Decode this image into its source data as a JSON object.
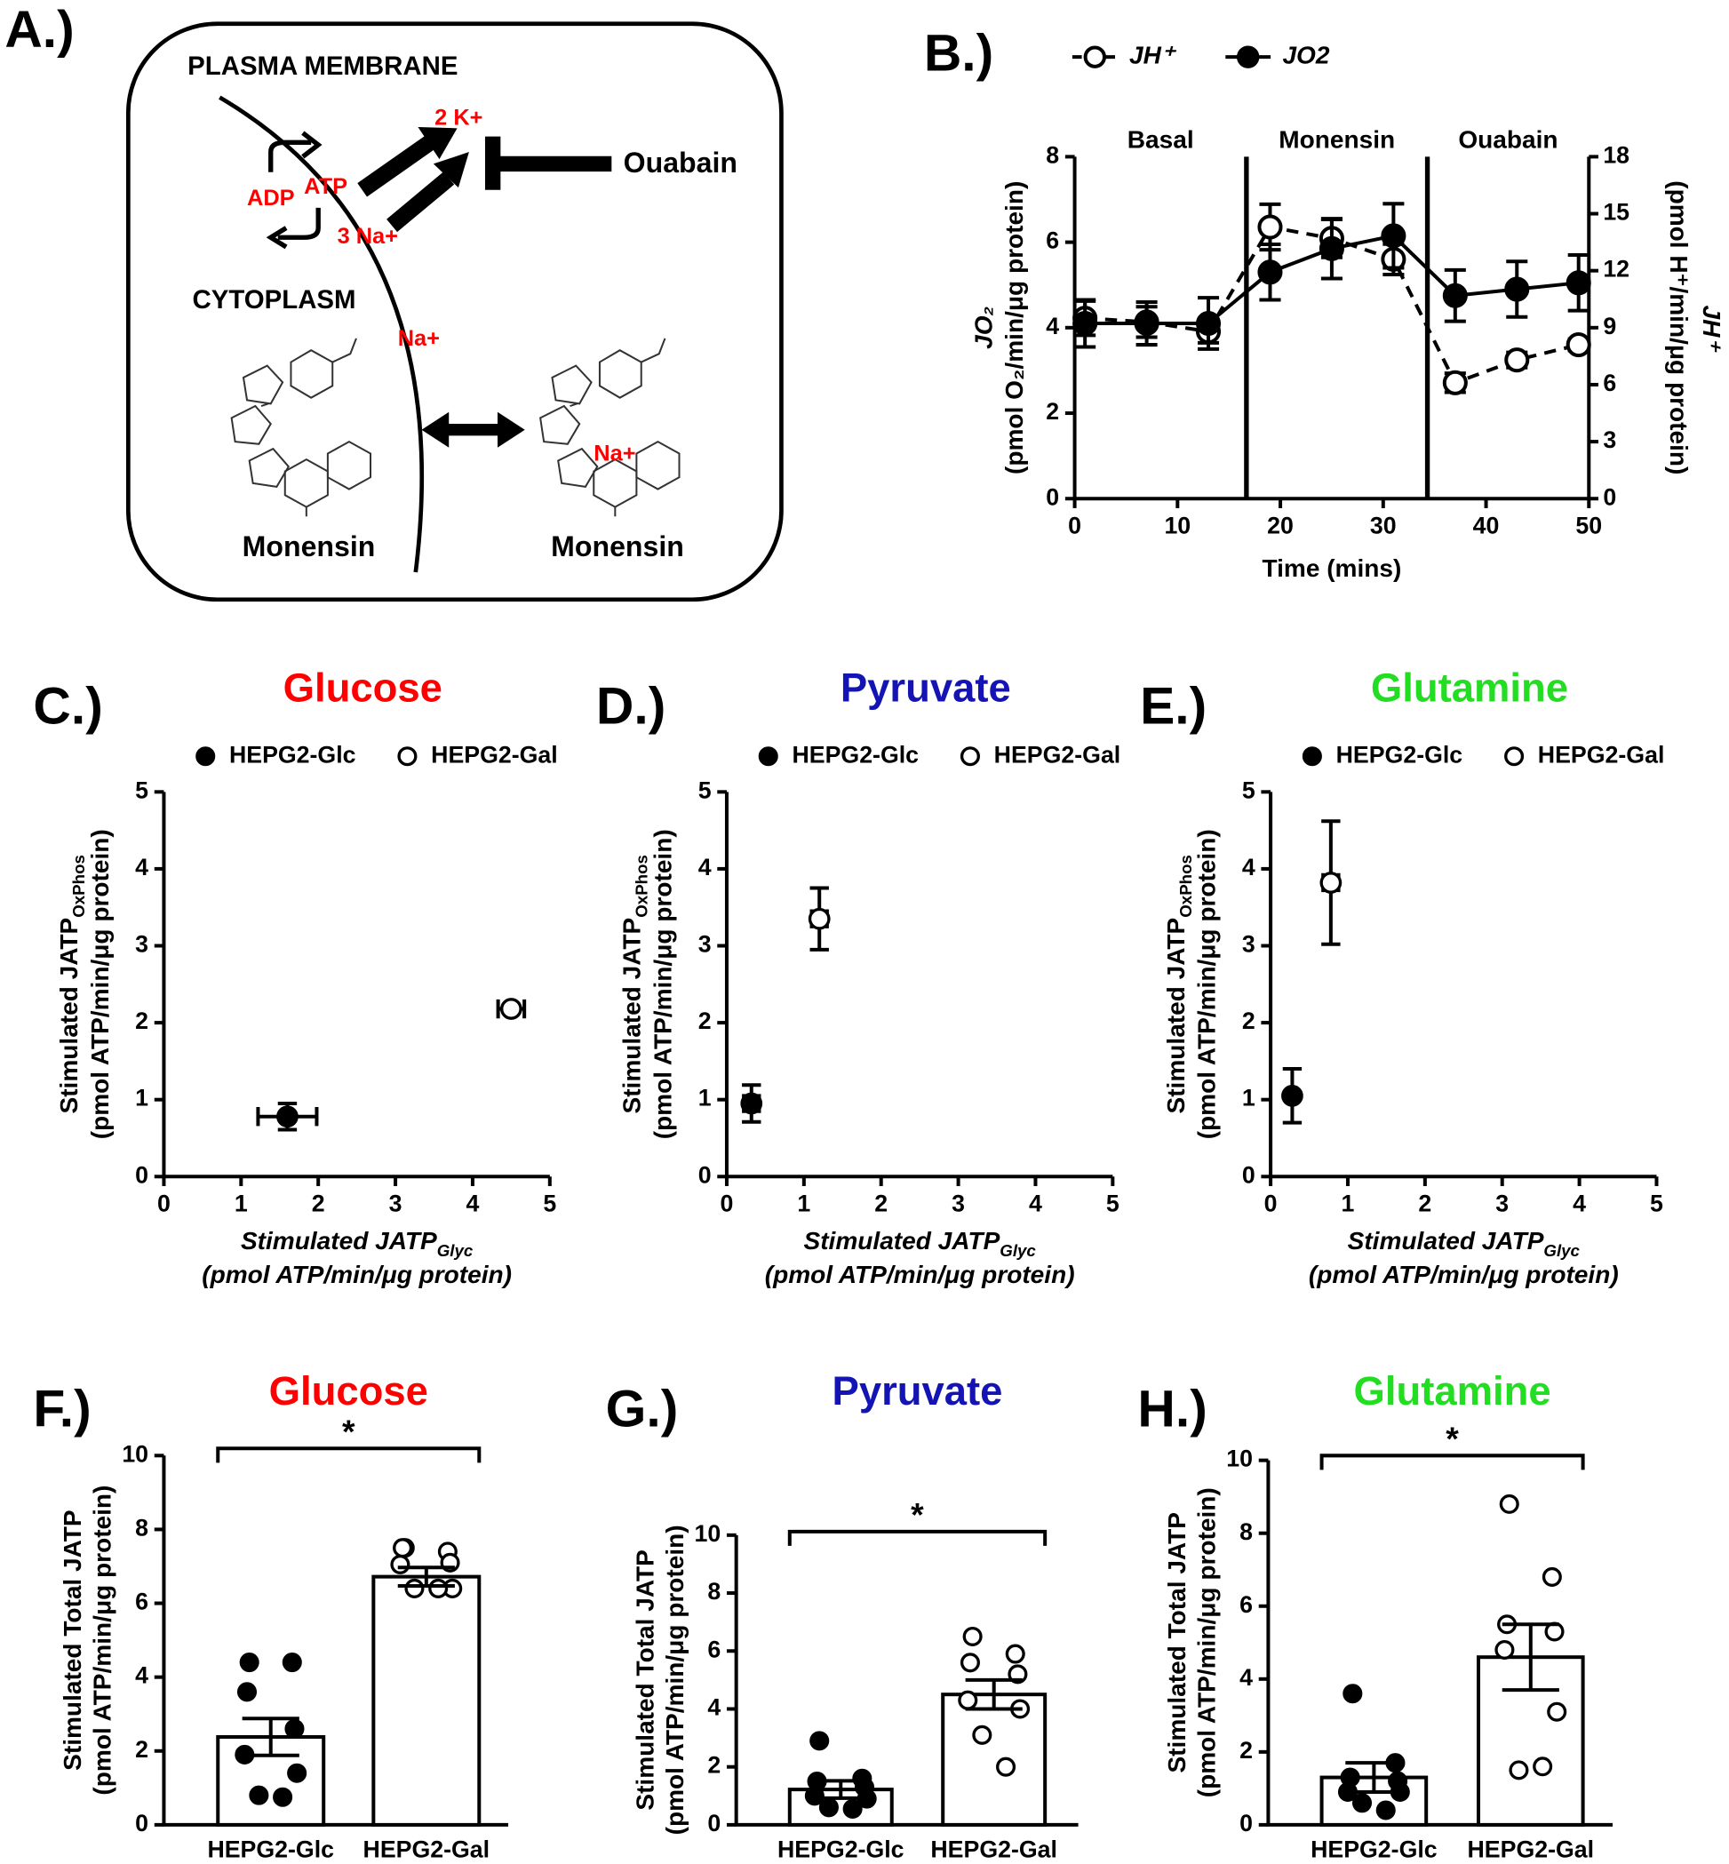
{
  "diagram": {
    "panel_label": "A.)",
    "membrane": "PLASMA MEMBRANE",
    "pump_k": "2 K+",
    "atp": "ATP",
    "adp": "ADP",
    "pump_na": "3 Na+",
    "inhibitor": "Ouabain",
    "cytoplasm": "CYTOPLASM",
    "ion_inside": "Na+",
    "ion_bound": "Na+",
    "drug_inside": "Monensin",
    "drug_outside": "Monensin"
  },
  "chart_data": [
    {
      "type": "line",
      "panel_label": "B.)",
      "x": [
        1,
        7,
        13,
        19,
        25,
        31,
        37,
        43,
        49
      ],
      "xlim": [
        0,
        50
      ],
      "xticks": [
        0,
        10,
        20,
        30,
        40,
        50
      ],
      "xlabel": "Time (mins)",
      "ylim": [
        0,
        8
      ],
      "yticks": [
        0,
        2,
        4,
        6,
        8
      ],
      "ylabel": "JO₂",
      "ylabel2": "(pmol O₂/min/μg protein)",
      "y2lim": [
        0,
        18
      ],
      "y2ticks": [
        0,
        3,
        6,
        9,
        12,
        15,
        18
      ],
      "y2label": "JH⁺",
      "y2label2": "(pmol H⁺/min/μg protein)",
      "regions": [
        {
          "label": "Basal",
          "start": 0,
          "end": 16.7
        },
        {
          "label": "Monensin",
          "start": 16.7,
          "end": 34.3
        },
        {
          "label": "Ouabain",
          "start": 34.3,
          "end": 50
        }
      ],
      "series": [
        {
          "name": "JH⁺",
          "axis": "y2",
          "color": "#000000",
          "line_style": "dashed",
          "marker_fill": "#ffffff",
          "values": [
            9.5,
            9.3,
            8.8,
            14.3,
            13.7,
            12.6,
            6.1,
            7.3,
            8.1
          ],
          "errors": [
            0.9,
            0.8,
            0.6,
            1.2,
            1.0,
            0.8,
            0.5,
            0.4,
            0.3
          ]
        },
        {
          "name": "JO2",
          "axis": "y",
          "color": "#000000",
          "line_style": "solid",
          "marker_fill": "#000000",
          "values": [
            4.1,
            4.1,
            4.1,
            5.3,
            5.85,
            6.15,
            4.75,
            4.9,
            5.05
          ],
          "errors": [
            0.55,
            0.5,
            0.6,
            0.65,
            0.7,
            0.75,
            0.6,
            0.65,
            0.65
          ]
        }
      ]
    },
    {
      "type": "scatter",
      "panel_label": "C.)",
      "title": "Glucose",
      "title_color": "#ff0000",
      "xlim": [
        0,
        5
      ],
      "xticks": [
        0,
        1,
        2,
        3,
        4,
        5
      ],
      "ylim": [
        0,
        5
      ],
      "yticks": [
        0,
        1,
        2,
        3,
        4,
        5
      ],
      "xlabel": "Stimulated JATP",
      "xlabel_sub": "Glyc",
      "xlabel2": "(pmol ATP/min/μg protein)",
      "ylabel": "Stimulated JATP",
      "ylabel_sub": "OxPhos",
      "ylabel2": "(pmol ATP/min/μg protein)",
      "series": [
        {
          "name": "HEPG2-Glc",
          "marker_fill": "#000000",
          "x": [
            1.6
          ],
          "xerr": [
            0.38
          ],
          "values": [
            0.78
          ],
          "errors": [
            0.17
          ]
        },
        {
          "name": "HEPG2-Gal",
          "marker_fill": "#ffffff",
          "x": [
            4.5
          ],
          "xerr": [
            0.17
          ],
          "values": [
            2.18
          ],
          "errors": [
            0.05
          ]
        }
      ]
    },
    {
      "type": "scatter",
      "panel_label": "D.)",
      "title": "Pyruvate",
      "title_color": "#1414b4",
      "xlim": [
        0,
        5
      ],
      "xticks": [
        0,
        1,
        2,
        3,
        4,
        5
      ],
      "ylim": [
        0,
        5
      ],
      "yticks": [
        0,
        1,
        2,
        3,
        4,
        5
      ],
      "xlabel": "Stimulated JATP",
      "xlabel_sub": "Glyc",
      "xlabel2": "(pmol ATP/min/μg protein)",
      "ylabel": "Stimulated JATP",
      "ylabel_sub": "OxPhos",
      "ylabel2": "(pmol ATP/min/μg protein)",
      "series": [
        {
          "name": "HEPG2-Glc",
          "marker_fill": "#000000",
          "x": [
            0.32
          ],
          "xerr": [
            0.1
          ],
          "values": [
            0.95
          ],
          "errors": [
            0.24
          ]
        },
        {
          "name": "HEPG2-Gal",
          "marker_fill": "#ffffff",
          "x": [
            1.2
          ],
          "xerr": [
            0.1
          ],
          "values": [
            3.35
          ],
          "errors": [
            0.4
          ]
        }
      ]
    },
    {
      "type": "scatter",
      "panel_label": "E.)",
      "title": "Glutamine",
      "title_color": "#22dd22",
      "xlim": [
        0,
        5
      ],
      "xticks": [
        0,
        1,
        2,
        3,
        4,
        5
      ],
      "ylim": [
        0,
        5
      ],
      "yticks": [
        0,
        1,
        2,
        3,
        4,
        5
      ],
      "xlabel": "Stimulated JATP",
      "xlabel_sub": "Glyc",
      "xlabel2": "(pmol ATP/min/μg protein)",
      "ylabel": "Stimulated JATP",
      "ylabel_sub": "OxPhos",
      "ylabel2": "(pmol ATP/min/μg protein)",
      "series": [
        {
          "name": "HEPG2-Glc",
          "marker_fill": "#000000",
          "x": [
            0.28
          ],
          "xerr": [
            0.05
          ],
          "values": [
            1.05
          ],
          "errors": [
            0.35
          ]
        },
        {
          "name": "HEPG2-Gal",
          "marker_fill": "#ffffff",
          "x": [
            0.78
          ],
          "xerr": [
            0.1
          ],
          "values": [
            3.82
          ],
          "errors": [
            0.8
          ]
        }
      ]
    },
    {
      "type": "bar",
      "panel_label": "F.)",
      "title": "Glucose",
      "title_color": "#ff0000",
      "annotation": "*",
      "ylim": [
        0,
        10
      ],
      "yticks": [
        0,
        2,
        4,
        6,
        8,
        10
      ],
      "ylabel": "Stimulated Total JATP",
      "ylabel2": "(pmol ATP/min/μg protein)",
      "categories": [
        "HEPG2-Glc",
        "HEPG2-Gal"
      ],
      "values": [
        2.38,
        6.72
      ],
      "errors": [
        0.5,
        0.25
      ],
      "marker_fill": [
        "#000000",
        "#ffffff"
      ],
      "points": [
        [
          4.4,
          4.4,
          3.6,
          2.6,
          1.9,
          1.4,
          0.8,
          0.75
        ],
        [
          7.5,
          7.4,
          7.5,
          7.1,
          7.05,
          6.4,
          6.4,
          6.4
        ]
      ]
    },
    {
      "type": "bar",
      "panel_label": "G.)",
      "title": "Pyruvate",
      "title_color": "#1414b4",
      "annotation": "*",
      "ylim": [
        0,
        10
      ],
      "yticks": [
        0,
        2,
        4,
        6,
        8,
        10
      ],
      "ylabel": "Stimulated Total JATP",
      "ylabel2": "(pmol ATP/min/μg protein)",
      "categories": [
        "HEPG2-Glc",
        "HEPG2-Gal"
      ],
      "values": [
        1.22,
        4.5
      ],
      "errors": [
        0.3,
        0.5
      ],
      "marker_fill": [
        "#000000",
        "#ffffff"
      ],
      "points": [
        [
          2.9,
          1.6,
          1.5,
          1.3,
          1.0,
          0.9,
          0.6,
          0.55
        ],
        [
          6.5,
          5.9,
          5.6,
          5.2,
          4.3,
          4.0,
          3.1,
          2.0
        ]
      ]
    },
    {
      "type": "bar",
      "panel_label": "H.)",
      "title": "Glutamine",
      "title_color": "#22dd22",
      "annotation": "*",
      "ylim": [
        0,
        10
      ],
      "yticks": [
        0,
        2,
        4,
        6,
        8,
        10
      ],
      "ylabel": "Stimulated Total JATP",
      "ylabel2": "(pmol ATP/min/μg protein)",
      "categories": [
        "HEPG2-Glc",
        "HEPG2-Gal"
      ],
      "values": [
        1.3,
        4.6
      ],
      "errors": [
        0.4,
        0.9
      ],
      "marker_fill": [
        "#000000",
        "#ffffff"
      ],
      "points": [
        [
          3.6,
          1.7,
          1.3,
          1.2,
          0.9,
          0.9,
          0.6,
          0.4
        ],
        [
          8.8,
          6.8,
          5.5,
          5.3,
          4.8,
          3.1,
          1.5,
          1.6
        ]
      ]
    }
  ]
}
